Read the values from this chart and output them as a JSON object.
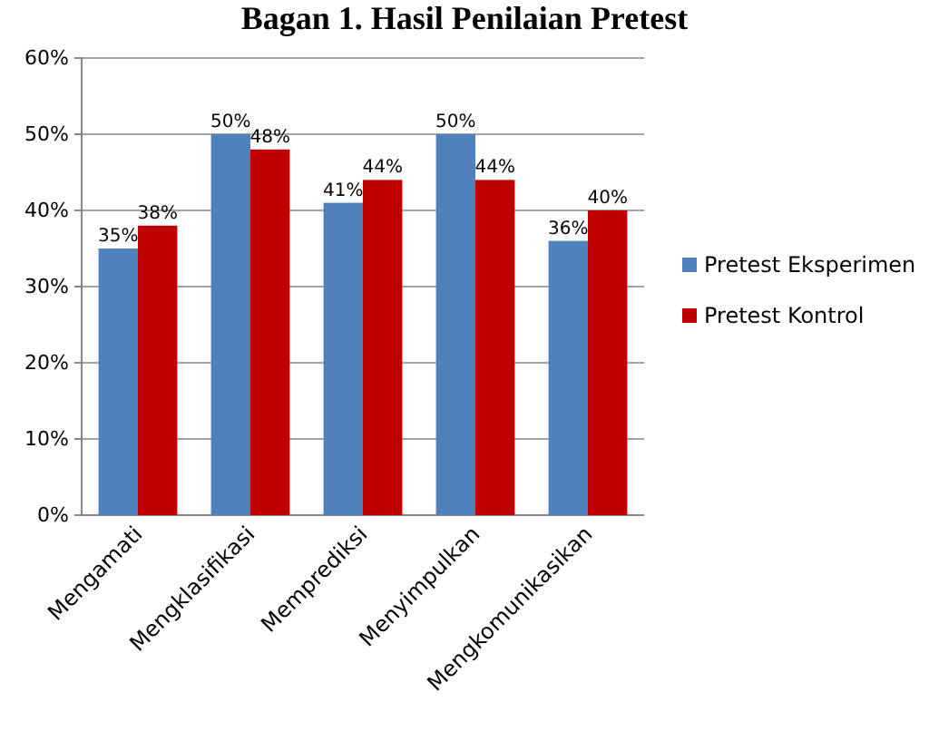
{
  "chart_data": {
    "type": "bar",
    "title": "Bagan 1. Hasil Penilaian Pretest",
    "categories": [
      "Mengamati",
      "Mengklasifikasi",
      "Memprediksi",
      "Menyimpulkan",
      "Mengkomunikasikan"
    ],
    "series": [
      {
        "name": "Pretest Eksperimen",
        "color": "#4f81bd",
        "values": [
          35,
          50,
          41,
          50,
          36
        ],
        "value_labels": [
          "35%",
          "50%",
          "41%",
          "50%",
          "36%"
        ]
      },
      {
        "name": "Pretest Kontrol",
        "color": "#c00000",
        "values": [
          38,
          48,
          44,
          44,
          40
        ],
        "value_labels": [
          "38%",
          "48%",
          "44%",
          "44%",
          "40%"
        ]
      }
    ],
    "ylim": [
      0,
      60
    ],
    "yticks": [
      {
        "value": 0,
        "label": "0%"
      },
      {
        "value": 10,
        "label": "10%"
      },
      {
        "value": 20,
        "label": "20%"
      },
      {
        "value": 30,
        "label": "30%"
      },
      {
        "value": 40,
        "label": "40%"
      },
      {
        "value": 50,
        "label": "50%"
      },
      {
        "value": 60,
        "label": "60%"
      }
    ],
    "grid": "y",
    "legend": "right"
  }
}
